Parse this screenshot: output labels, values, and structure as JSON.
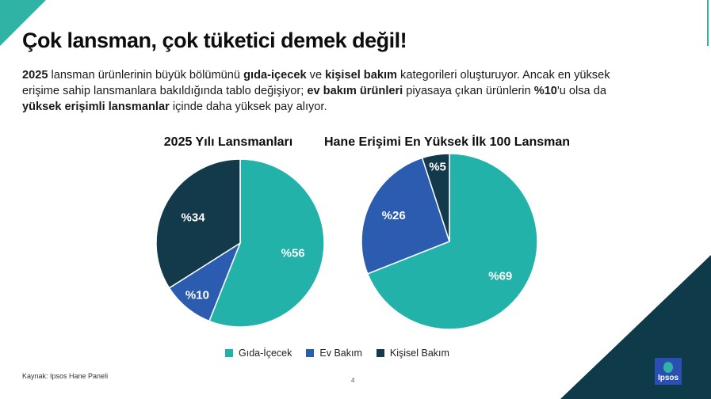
{
  "slide": {
    "title": "Çok lansman, çok tüketici demek değil!",
    "subtitle_parts": [
      {
        "t": "2025",
        "b": true
      },
      {
        "t": " lansman ürünlerinin büyük bölümünü ",
        "b": false
      },
      {
        "t": "gıda-içecek",
        "b": true
      },
      {
        "t": " ve ",
        "b": false
      },
      {
        "t": "kişisel bakım",
        "b": true
      },
      {
        "t": " kategorileri oluşturuyor. Ancak en yüksek erişime sahip lansmanlara bakıldığında tablo değişiyor; ",
        "b": false
      },
      {
        "t": "ev bakım ürünleri",
        "b": true
      },
      {
        "t": " piyasaya çıkan ürünlerin ",
        "b": false
      },
      {
        "t": "%10",
        "b": true
      },
      {
        "t": "'u olsa da ",
        "b": false
      },
      {
        "t": "yüksek erişimli lansmanlar",
        "b": true
      },
      {
        "t": " içinde daha yüksek pay alıyor.",
        "b": false
      }
    ],
    "source": "Kaynak: Ipsos Hane Paneli",
    "page_number": "4",
    "logo_text": "Ipsos",
    "colors": {
      "accent_teal": "#2fb3a5",
      "dark_navy": "#0f3a4a"
    }
  },
  "chart_data": [
    {
      "type": "pie",
      "title": "2025 Yılı Lansmanları",
      "categories": [
        "Gıda-İçecek",
        "Ev Bakım",
        "Kişisel Bakım"
      ],
      "values": [
        56,
        10,
        34
      ],
      "labels": [
        "%56",
        "%10",
        "%34"
      ],
      "colors": [
        "#22b2aa",
        "#2b5cb0",
        "#133a4b"
      ],
      "start_angle_deg": 0,
      "direction": "clockwise",
      "legend": "bottom"
    },
    {
      "type": "pie",
      "title": "Hane Erişimi En Yüksek İlk 100 Lansman",
      "categories": [
        "Gıda-İçecek",
        "Ev Bakım",
        "Kişisel Bakım"
      ],
      "values": [
        69,
        26,
        5
      ],
      "labels": [
        "%69",
        "%26",
        "%5"
      ],
      "colors": [
        "#22b2aa",
        "#2b5cb0",
        "#133a4b"
      ],
      "start_angle_deg": 0,
      "direction": "clockwise",
      "legend": "bottom"
    }
  ],
  "legend": [
    {
      "label": "Gıda-İçecek",
      "color": "#22b2aa"
    },
    {
      "label": "Ev Bakım",
      "color": "#2b5cb0"
    },
    {
      "label": "Kişisel Bakım",
      "color": "#133a4b"
    }
  ]
}
